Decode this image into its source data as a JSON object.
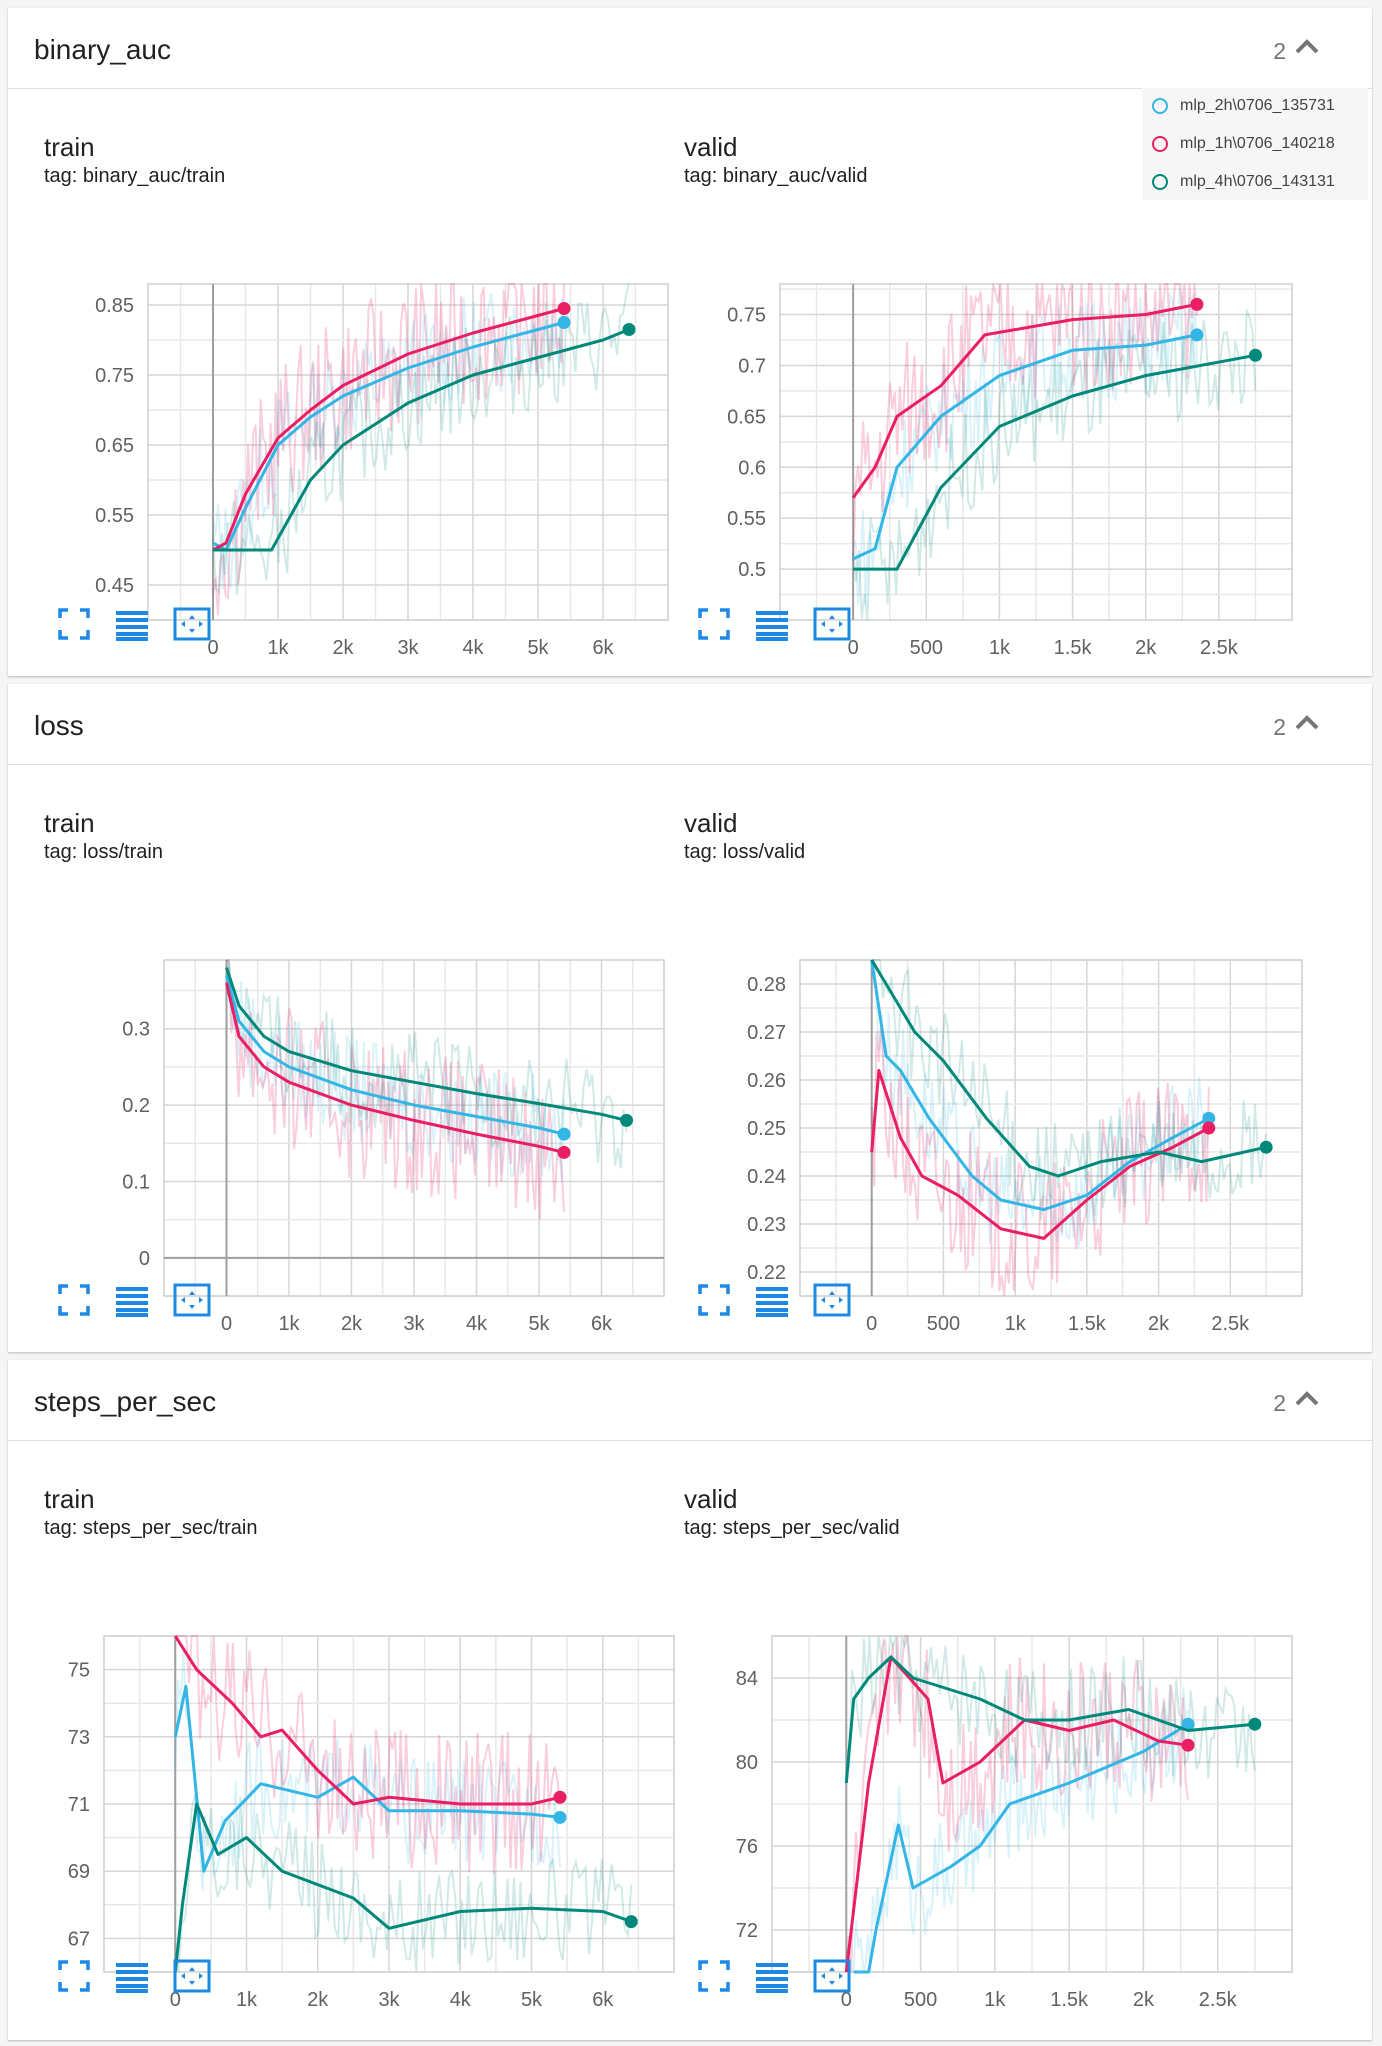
{
  "colors": {
    "mlp_2h": "#33b5e5",
    "mlp_1h": "#e91e63",
    "mlp_4h": "#00897b",
    "accent": "#1e88e5"
  },
  "legend": [
    {
      "label": "mlp_2h\\0706_135731",
      "color_key": "mlp_2h"
    },
    {
      "label": "mlp_1h\\0706_140218",
      "color_key": "mlp_1h"
    },
    {
      "label": "mlp_4h\\0706_143131",
      "color_key": "mlp_4h"
    }
  ],
  "toolbar_icons": [
    "fullscreen-icon",
    "data-table-icon",
    "fit-domain-icon"
  ],
  "sections": [
    {
      "title": "binary_auc",
      "count": "2"
    },
    {
      "title": "loss",
      "count": "2"
    },
    {
      "title": "steps_per_sec",
      "count": "2"
    }
  ],
  "chart_data": [
    {
      "type": "line",
      "title": "train",
      "subtitle": "tag: binary_auc/train",
      "xticks": [
        "0",
        "1k",
        "2k",
        "3k",
        "4k",
        "5k",
        "6k"
      ],
      "yticks": [
        "0.85",
        "0.75",
        "0.65",
        "0.55",
        "0.45"
      ],
      "xlim": [
        -1000,
        7000
      ],
      "ylim": [
        0.4,
        0.88
      ],
      "series": [
        {
          "name": "mlp_2h\\0706_135731",
          "x": [
            0,
            200,
            500,
            1000,
            1500,
            2000,
            3000,
            4000,
            5000,
            5400
          ],
          "y": [
            0.51,
            0.5,
            0.56,
            0.65,
            0.69,
            0.72,
            0.76,
            0.79,
            0.815,
            0.825
          ]
        },
        {
          "name": "mlp_1h\\0706_140218",
          "x": [
            0,
            200,
            500,
            1000,
            1500,
            2000,
            3000,
            4000,
            5000,
            5400
          ],
          "y": [
            0.5,
            0.51,
            0.58,
            0.66,
            0.7,
            0.735,
            0.78,
            0.81,
            0.835,
            0.845
          ]
        },
        {
          "name": "mlp_4h\\0706_143131",
          "x": [
            0,
            500,
            900,
            1500,
            2000,
            3000,
            4000,
            5000,
            6000,
            6400
          ],
          "y": [
            0.5,
            0.5,
            0.5,
            0.6,
            0.65,
            0.71,
            0.75,
            0.775,
            0.8,
            0.815
          ]
        }
      ]
    },
    {
      "type": "line",
      "title": "valid",
      "subtitle": "tag: binary_auc/valid",
      "xticks": [
        "0",
        "500",
        "1k",
        "1.5k",
        "2k",
        "2.5k"
      ],
      "yticks": [
        "0.75",
        "0.7",
        "0.65",
        "0.6",
        "0.55",
        "0.5"
      ],
      "xlim": [
        -500,
        3000
      ],
      "ylim": [
        0.45,
        0.78
      ],
      "series": [
        {
          "name": "mlp_2h\\0706_135731",
          "x": [
            0,
            150,
            300,
            600,
            1000,
            1500,
            2000,
            2350
          ],
          "y": [
            0.51,
            0.52,
            0.6,
            0.65,
            0.69,
            0.715,
            0.72,
            0.73
          ]
        },
        {
          "name": "mlp_1h\\0706_140218",
          "x": [
            0,
            150,
            300,
            600,
            900,
            1500,
            2000,
            2350
          ],
          "y": [
            0.57,
            0.6,
            0.65,
            0.68,
            0.73,
            0.745,
            0.75,
            0.76
          ]
        },
        {
          "name": "mlp_4h\\0706_143131",
          "x": [
            0,
            200,
            300,
            600,
            1000,
            1500,
            2000,
            2750
          ],
          "y": [
            0.5,
            0.5,
            0.5,
            0.58,
            0.64,
            0.67,
            0.69,
            0.71
          ]
        }
      ]
    },
    {
      "type": "line",
      "title": "train",
      "subtitle": "tag: loss/train",
      "xticks": [
        "0",
        "1k",
        "2k",
        "3k",
        "4k",
        "5k",
        "6k"
      ],
      "yticks": [
        "0.3",
        "0.2",
        "0.1",
        "0"
      ],
      "xlim": [
        -1000,
        7000
      ],
      "ylim": [
        -0.05,
        0.39
      ],
      "series": [
        {
          "name": "mlp_2h\\0706_135731",
          "x": [
            0,
            200,
            600,
            1000,
            2000,
            3000,
            4000,
            5000,
            5400
          ],
          "y": [
            0.37,
            0.31,
            0.27,
            0.25,
            0.22,
            0.2,
            0.185,
            0.17,
            0.162
          ]
        },
        {
          "name": "mlp_1h\\0706_140218",
          "x": [
            0,
            200,
            600,
            1000,
            2000,
            3000,
            4000,
            5000,
            5400
          ],
          "y": [
            0.36,
            0.29,
            0.25,
            0.23,
            0.2,
            0.18,
            0.162,
            0.146,
            0.138
          ]
        },
        {
          "name": "mlp_4h\\0706_143131",
          "x": [
            0,
            200,
            600,
            1000,
            2000,
            3000,
            4000,
            5000,
            6000,
            6400
          ],
          "y": [
            0.38,
            0.33,
            0.29,
            0.27,
            0.245,
            0.23,
            0.215,
            0.202,
            0.188,
            0.18
          ]
        }
      ]
    },
    {
      "type": "line",
      "title": "valid",
      "subtitle": "tag: loss/valid",
      "xticks": [
        "0",
        "500",
        "1k",
        "1.5k",
        "2k",
        "2.5k"
      ],
      "yticks": [
        "0.28",
        "0.27",
        "0.26",
        "0.25",
        "0.24",
        "0.23",
        "0.22"
      ],
      "xlim": [
        -500,
        3000
      ],
      "ylim": [
        0.215,
        0.285
      ],
      "series": [
        {
          "name": "mlp_2h\\0706_135731",
          "x": [
            0,
            100,
            200,
            400,
            700,
            900,
            1200,
            1500,
            1800,
            2100,
            2350
          ],
          "y": [
            0.285,
            0.265,
            0.262,
            0.252,
            0.24,
            0.235,
            0.233,
            0.236,
            0.243,
            0.248,
            0.252
          ]
        },
        {
          "name": "mlp_1h\\0706_140218",
          "x": [
            0,
            50,
            200,
            350,
            600,
            900,
            1200,
            1500,
            1800,
            2100,
            2350
          ],
          "y": [
            0.245,
            0.262,
            0.248,
            0.24,
            0.236,
            0.229,
            0.227,
            0.235,
            0.242,
            0.246,
            0.25
          ]
        },
        {
          "name": "mlp_4h\\0706_143131",
          "x": [
            0,
            100,
            300,
            500,
            800,
            1100,
            1300,
            1600,
            2000,
            2300,
            2600,
            2750
          ],
          "y": [
            0.29,
            0.28,
            0.27,
            0.264,
            0.252,
            0.242,
            0.24,
            0.243,
            0.245,
            0.243,
            0.245,
            0.246
          ]
        }
      ]
    },
    {
      "type": "line",
      "title": "train",
      "subtitle": "tag: steps_per_sec/train",
      "xticks": [
        "0",
        "1k",
        "2k",
        "3k",
        "4k",
        "5k",
        "6k"
      ],
      "yticks": [
        "75",
        "73",
        "71",
        "69",
        "67"
      ],
      "xlim": [
        -1000,
        7000
      ],
      "ylim": [
        66.0,
        76.0
      ],
      "series": [
        {
          "name": "mlp_2h\\0706_135731",
          "x": [
            0,
            150,
            400,
            700,
            1200,
            2000,
            2500,
            3000,
            4000,
            5000,
            5400
          ],
          "y": [
            73.0,
            74.5,
            69.0,
            70.5,
            71.6,
            71.2,
            71.8,
            70.8,
            70.8,
            70.7,
            70.6
          ]
        },
        {
          "name": "mlp_1h\\0706_140218",
          "x": [
            0,
            300,
            800,
            1200,
            1500,
            2000,
            2500,
            3000,
            4000,
            5000,
            5400
          ],
          "y": [
            80.0,
            75.0,
            74.0,
            73.0,
            73.2,
            72.0,
            71.0,
            71.2,
            71.0,
            71.0,
            71.2
          ]
        },
        {
          "name": "mlp_4h\\0706_143131",
          "x": [
            0,
            100,
            300,
            600,
            1000,
            1500,
            2500,
            3000,
            4000,
            5000,
            6000,
            6400
          ],
          "y": [
            66.0,
            68.0,
            71.0,
            69.5,
            70.0,
            69.0,
            68.2,
            67.3,
            67.8,
            67.9,
            67.8,
            67.5
          ]
        }
      ]
    },
    {
      "type": "line",
      "title": "valid",
      "subtitle": "tag: steps_per_sec/valid",
      "xticks": [
        "0",
        "500",
        "1k",
        "1.5k",
        "2k",
        "2.5k"
      ],
      "yticks": [
        "84",
        "80",
        "76",
        "72"
      ],
      "xlim": [
        -500,
        3000
      ],
      "ylim": [
        70.0,
        86.0
      ],
      "series": [
        {
          "name": "mlp_2h\\0706_135731",
          "x": [
            50,
            150,
            200,
            350,
            450,
            700,
            900,
            1100,
            1500,
            2000,
            2300
          ],
          "y": [
            70,
            70,
            72,
            77,
            74,
            75,
            76,
            78,
            79,
            80.5,
            81.8
          ]
        },
        {
          "name": "mlp_1h\\0706_140218",
          "x": [
            0,
            150,
            300,
            550,
            650,
            900,
            1200,
            1500,
            1800,
            2100,
            2300
          ],
          "y": [
            70,
            79,
            85,
            83,
            79,
            80,
            82,
            81.5,
            82,
            81,
            80.8
          ]
        },
        {
          "name": "mlp_4h\\0706_143131",
          "x": [
            0,
            50,
            150,
            300,
            450,
            900,
            1200,
            1500,
            1900,
            2300,
            2750
          ],
          "y": [
            79,
            83,
            84,
            85,
            84,
            83,
            82,
            82,
            82.5,
            81.5,
            81.8
          ]
        }
      ]
    }
  ]
}
